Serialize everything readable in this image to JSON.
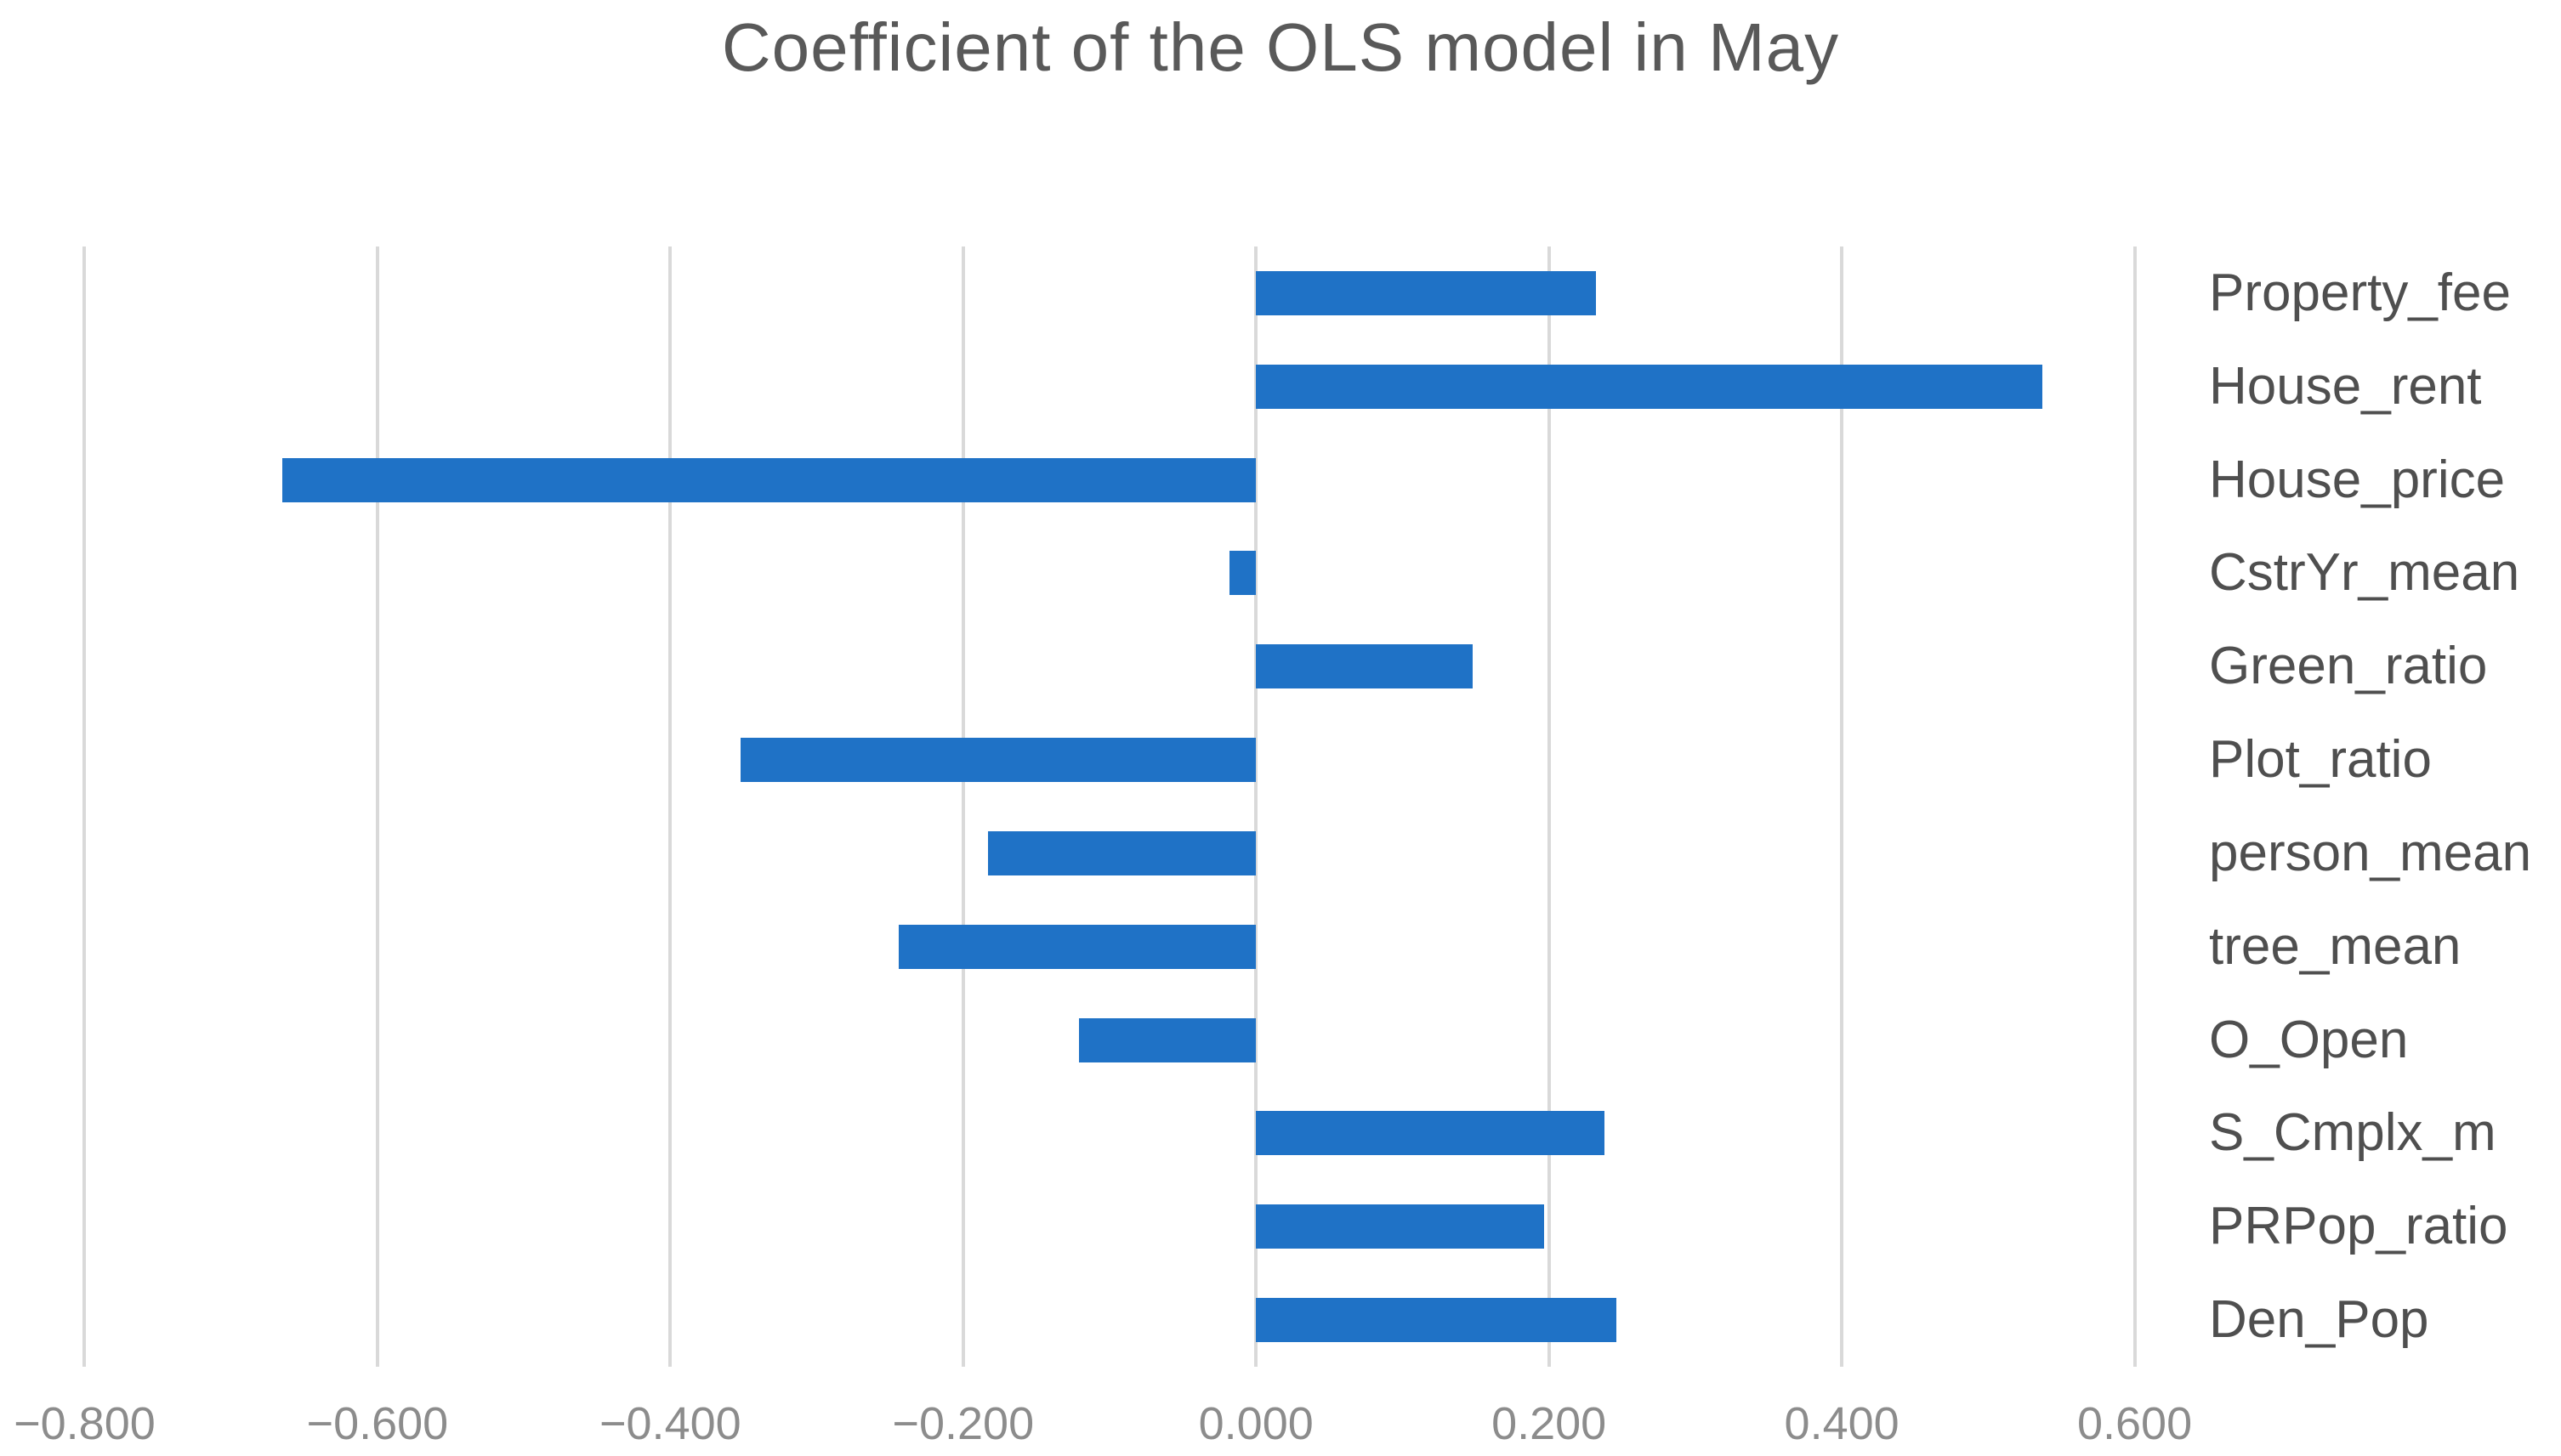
{
  "chart_data": {
    "type": "bar",
    "orientation": "horizontal",
    "title": "Coefficient of the OLS model in May",
    "categories": [
      "Property_fee",
      "House_rent",
      "House_price",
      "CstrYr_mean",
      "Green_ratio",
      "Plot_ratio",
      "person_mean",
      "tree_mean",
      "O_Open",
      "S_Cmplx_m",
      "PRPop_ratio",
      "Den_Pop"
    ],
    "values": [
      0.232,
      0.537,
      -0.665,
      -0.018,
      0.148,
      -0.352,
      -0.183,
      -0.244,
      -0.121,
      0.238,
      0.197,
      0.246
    ],
    "x_ticks": [
      -0.8,
      -0.6,
      -0.4,
      -0.2,
      0.0,
      0.2,
      0.4,
      0.6
    ],
    "x_tick_labels": [
      "−0.800",
      "−0.600",
      "−0.400",
      "−0.200",
      "0.000",
      "0.200",
      "0.400",
      "0.600"
    ],
    "xlim": [
      -0.82,
      0.62
    ],
    "xlabel": "",
    "ylabel": "",
    "legend": "none",
    "grid": "vertical-only",
    "category_labels_position": "right",
    "bar_color": "#1F72C6",
    "gridline_color": "#D9D9D9",
    "title_color": "#595959",
    "tick_label_color": "#8C8C8C",
    "category_label_color": "#4F4F4F"
  }
}
